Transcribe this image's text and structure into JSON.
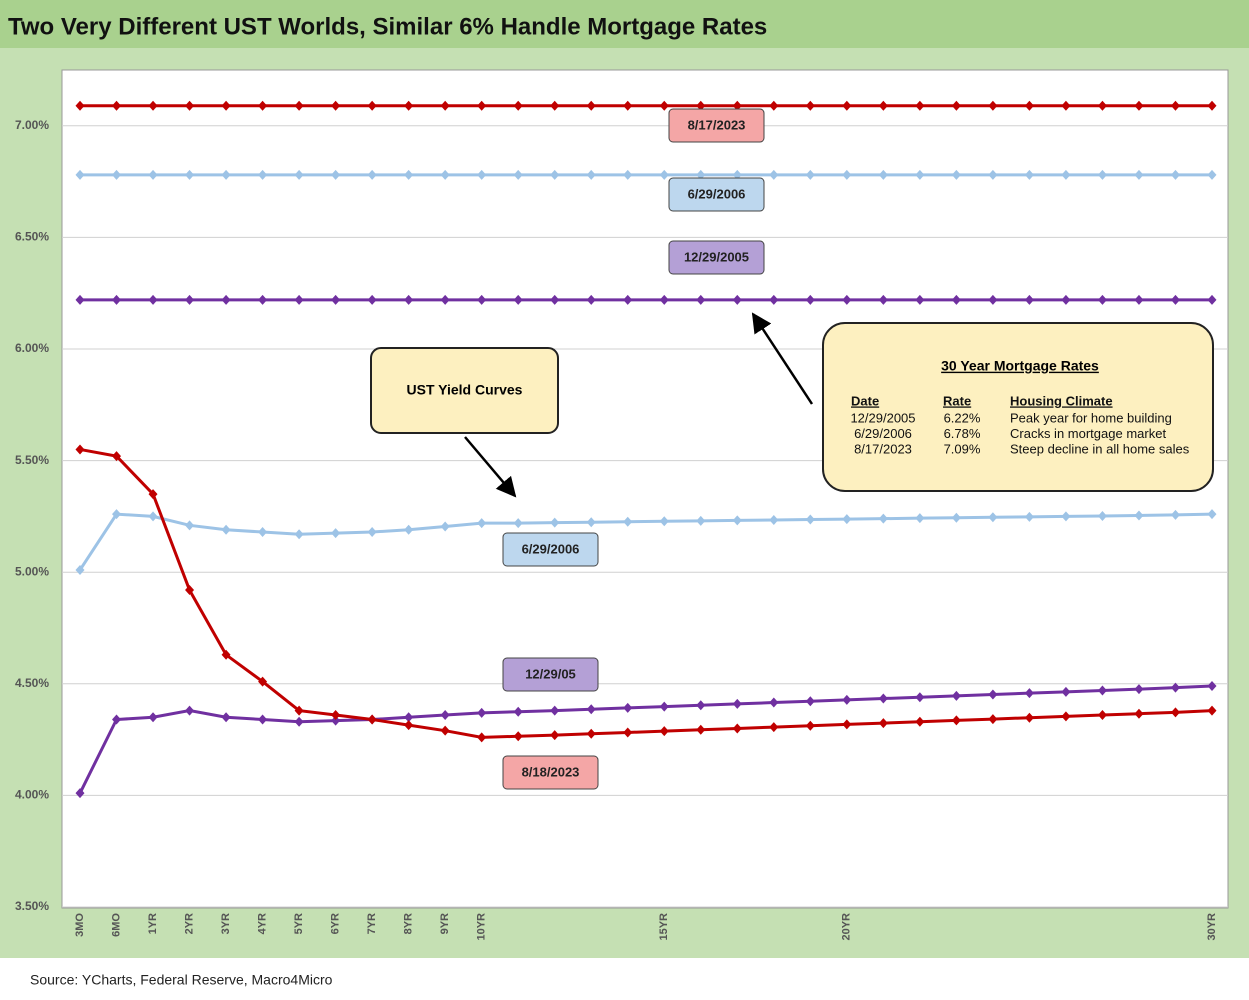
{
  "chart_data": {
    "type": "line",
    "title": "Two Very Different UST Worlds, Similar 6% Handle Mortgage Rates",
    "source": "Source: YCharts, Federal Reserve, Macro4Micro",
    "categories": [
      "3MO",
      "6MO",
      "1YR",
      "2YR",
      "3YR",
      "4YR",
      "5YR",
      "6YR",
      "7YR",
      "8YR",
      "9YR",
      "10YR",
      null,
      null,
      null,
      null,
      "15YR",
      null,
      null,
      null,
      null,
      "20YR",
      null,
      null,
      null,
      null,
      null,
      null,
      null,
      null,
      null,
      "30YR"
    ],
    "ylim": [
      3.5,
      7.25
    ],
    "yticks": [
      {
        "value": 3.5,
        "label": "3.50%"
      },
      {
        "value": 4.0,
        "label": "4.00%"
      },
      {
        "value": 4.5,
        "label": "4.50%"
      },
      {
        "value": 5.0,
        "label": "5.00%"
      },
      {
        "value": 5.5,
        "label": "5.50%"
      },
      {
        "value": 6.0,
        "label": "6.00%"
      },
      {
        "value": 6.5,
        "label": "6.50%"
      },
      {
        "value": 7.0,
        "label": "7.00%"
      }
    ],
    "grid": true,
    "series": [
      {
        "name": "8/17/2023",
        "color": "#c00000",
        "values": [
          7.09,
          7.09,
          7.09,
          7.09,
          7.09,
          7.09,
          7.09,
          7.09,
          7.09,
          7.09,
          7.09,
          7.09,
          7.09,
          7.09,
          7.09,
          7.09,
          7.09,
          7.09,
          7.09,
          7.09,
          7.09,
          7.09,
          7.09,
          7.09,
          7.09,
          7.09,
          7.09,
          7.09,
          7.09,
          7.09,
          7.09,
          7.09
        ]
      },
      {
        "name": "6/29/2006",
        "color": "#9dc3e6",
        "values": [
          6.78,
          6.78,
          6.78,
          6.78,
          6.78,
          6.78,
          6.78,
          6.78,
          6.78,
          6.78,
          6.78,
          6.78,
          6.78,
          6.78,
          6.78,
          6.78,
          6.78,
          6.78,
          6.78,
          6.78,
          6.78,
          6.78,
          6.78,
          6.78,
          6.78,
          6.78,
          6.78,
          6.78,
          6.78,
          6.78,
          6.78,
          6.78
        ]
      },
      {
        "name": "12/29/2005",
        "color": "#7030a0",
        "values": [
          6.22,
          6.22,
          6.22,
          6.22,
          6.22,
          6.22,
          6.22,
          6.22,
          6.22,
          6.22,
          6.22,
          6.22,
          6.22,
          6.22,
          6.22,
          6.22,
          6.22,
          6.22,
          6.22,
          6.22,
          6.22,
          6.22,
          6.22,
          6.22,
          6.22,
          6.22,
          6.22,
          6.22,
          6.22,
          6.22,
          6.22,
          6.22
        ]
      },
      {
        "name": "6/29/2006",
        "color": "#9dc3e6",
        "values": [
          5.01,
          5.26,
          5.25,
          5.21,
          5.19,
          5.18,
          5.17,
          5.175,
          5.18,
          5.19,
          5.205,
          5.22,
          5.22,
          5.222,
          5.224,
          5.226,
          5.228,
          5.23,
          5.232,
          5.234,
          5.236,
          5.238,
          5.24,
          5.242,
          5.244,
          5.246,
          5.248,
          5.25,
          5.252,
          5.254,
          5.257,
          5.26
        ]
      },
      {
        "name": "12/29/05",
        "color": "#7030a0",
        "values": [
          4.01,
          4.34,
          4.35,
          4.38,
          4.35,
          4.34,
          4.33,
          4.335,
          4.34,
          4.35,
          4.36,
          4.37,
          4.375,
          4.38,
          4.386,
          4.392,
          4.398,
          4.404,
          4.41,
          4.416,
          4.422,
          4.428,
          4.434,
          4.44,
          4.446,
          4.452,
          4.458,
          4.464,
          4.47,
          4.476,
          4.483,
          4.49
        ]
      },
      {
        "name": "8/18/2023",
        "color": "#c00000",
        "values": [
          5.55,
          5.52,
          5.35,
          4.92,
          4.63,
          4.51,
          4.38,
          4.36,
          4.34,
          4.315,
          4.29,
          4.26,
          4.265,
          4.27,
          4.276,
          4.282,
          4.288,
          4.294,
          4.3,
          4.306,
          4.312,
          4.318,
          4.324,
          4.33,
          4.336,
          4.342,
          4.348,
          4.354,
          4.36,
          4.366,
          4.372,
          4.38
        ]
      }
    ],
    "annotations": [
      "UST Yield Curves"
    ],
    "info_box": {
      "title": "30 Year Mortgage Rates",
      "columns": [
        "Date",
        "Rate",
        "Housing Climate"
      ],
      "rows": [
        [
          "12/29/2005",
          "6.22%",
          "Peak year for home building"
        ],
        [
          "6/29/2006",
          "6.78%",
          "Cracks in mortgage market"
        ],
        [
          "8/17/2023",
          "7.09%",
          "Steep decline in all home sales"
        ]
      ]
    }
  }
}
